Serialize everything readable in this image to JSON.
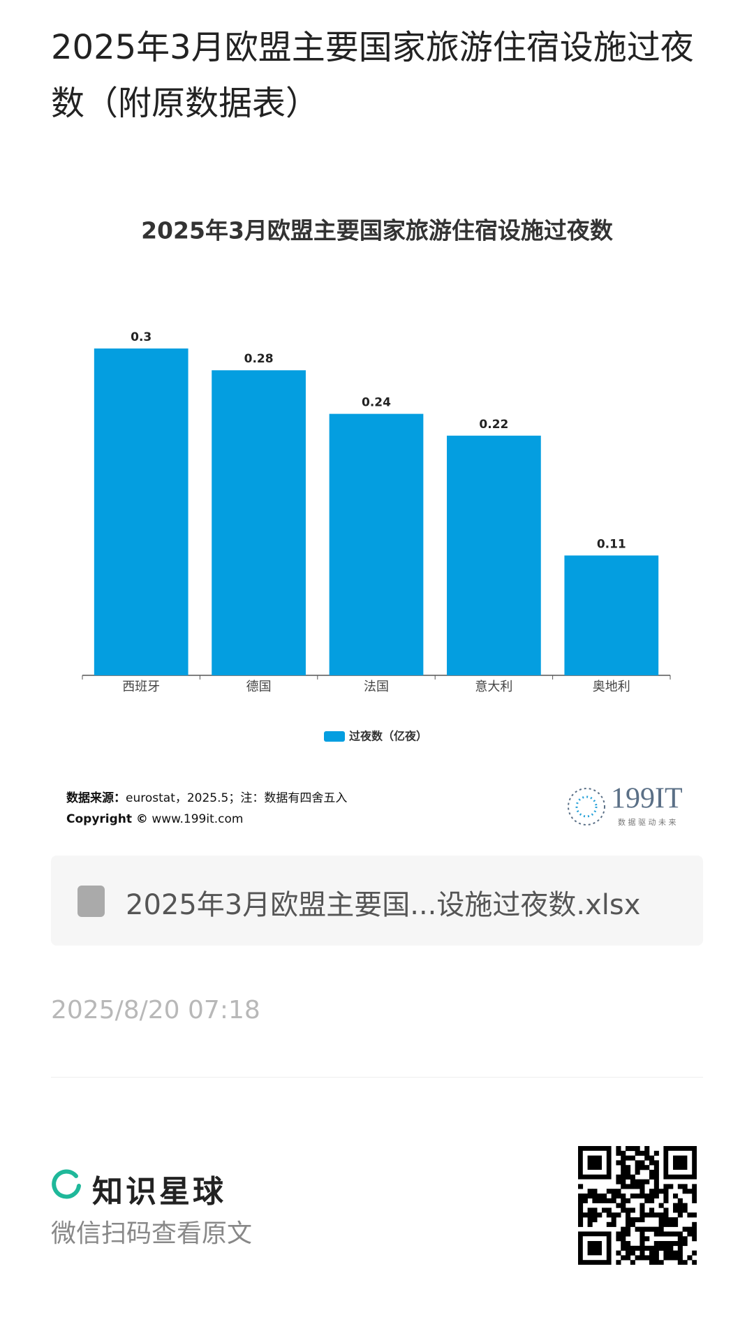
{
  "header": {
    "title": "2025年3月欧盟主要国家旅游住宿设施过夜数（附原数据表）"
  },
  "chart_data": {
    "type": "bar",
    "title": "2025年3月欧盟主要国家旅游住宿设施过夜数",
    "categories": [
      "西班牙",
      "德国",
      "法国",
      "意大利",
      "奥地利"
    ],
    "series": [
      {
        "name": "过夜数（亿夜）",
        "color": "#049ee0",
        "values": [
          0.3,
          0.28,
          0.24,
          0.22,
          0.11
        ]
      }
    ],
    "legend": "bottom"
  },
  "source": {
    "label": "数据来源：",
    "text": "eurostat，2025.5；注：数据有四舍五入",
    "copyright_label": "Copyright ©",
    "copyright_url": "www.199it.com"
  },
  "logo": {
    "name": "199IT",
    "slogan": "数 据 驱 动 未 来"
  },
  "attachment": {
    "filename": "2025年3月欧盟主要国...设施过夜数.xlsx"
  },
  "date": "2025/8/20 07:18",
  "footer": {
    "brand": "知识星球",
    "hint": "微信扫码查看原文"
  }
}
